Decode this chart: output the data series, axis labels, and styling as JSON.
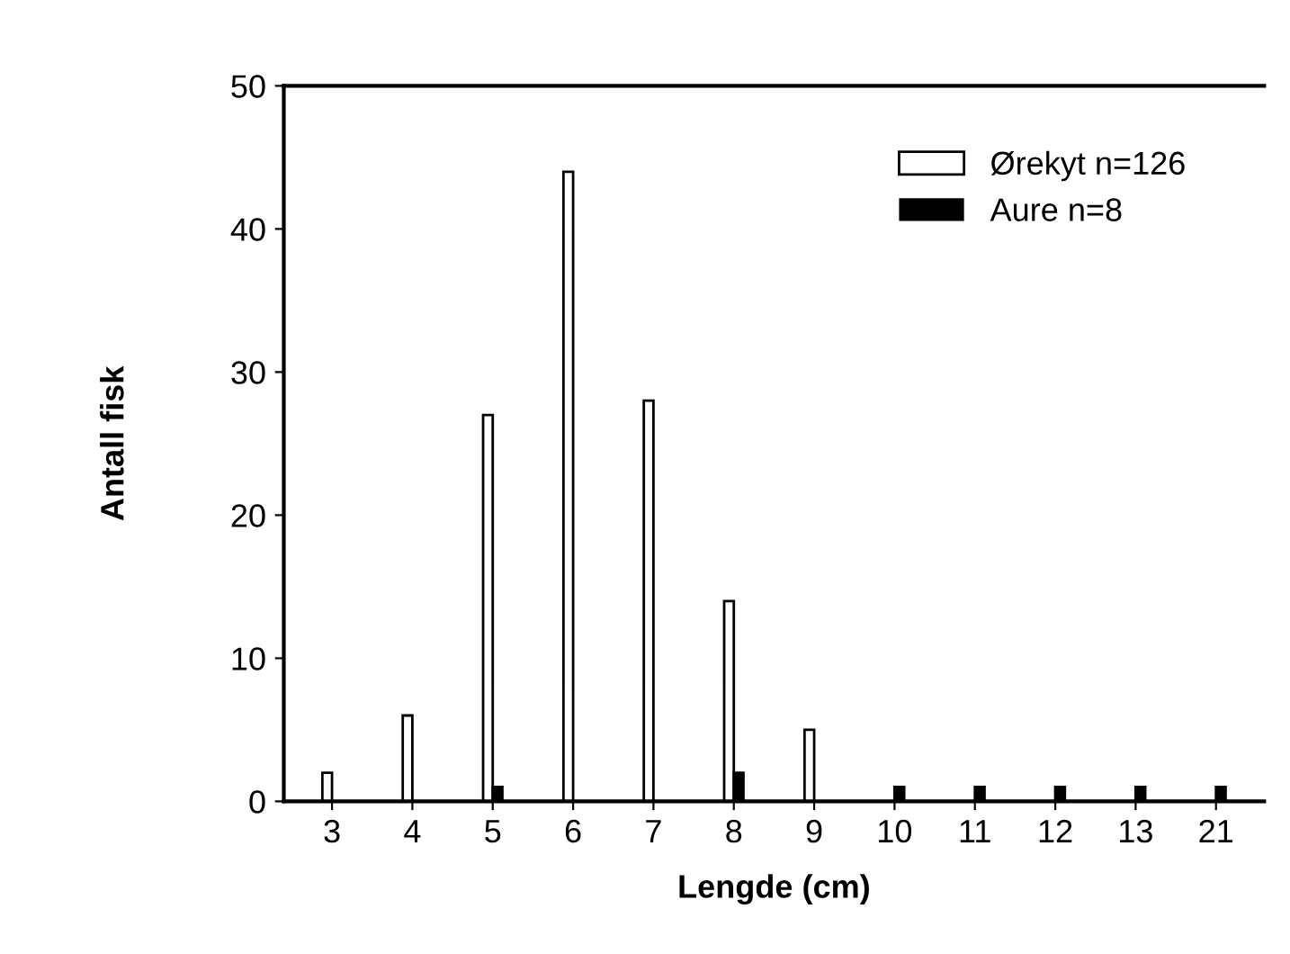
{
  "chart_data": {
    "type": "bar",
    "xlabel": "Lengde (cm)",
    "ylabel": "Antall fisk",
    "categories": [
      "3",
      "4",
      "5",
      "6",
      "7",
      "8",
      "9",
      "10",
      "11",
      "12",
      "13",
      "21"
    ],
    "series": [
      {
        "name": "Ørekyt n=126",
        "color": "#ffffff",
        "values": [
          2,
          6,
          27,
          44,
          28,
          14,
          5,
          0,
          0,
          0,
          0,
          0
        ]
      },
      {
        "name": "Aure n=8",
        "color": "#000000",
        "values": [
          0,
          0,
          1,
          0,
          0,
          2,
          0,
          1,
          1,
          1,
          1,
          1
        ]
      }
    ],
    "ylim": [
      0,
      50
    ],
    "yticks": [
      0,
      10,
      20,
      30,
      40,
      50
    ],
    "grid": false,
    "legend": "top right"
  }
}
